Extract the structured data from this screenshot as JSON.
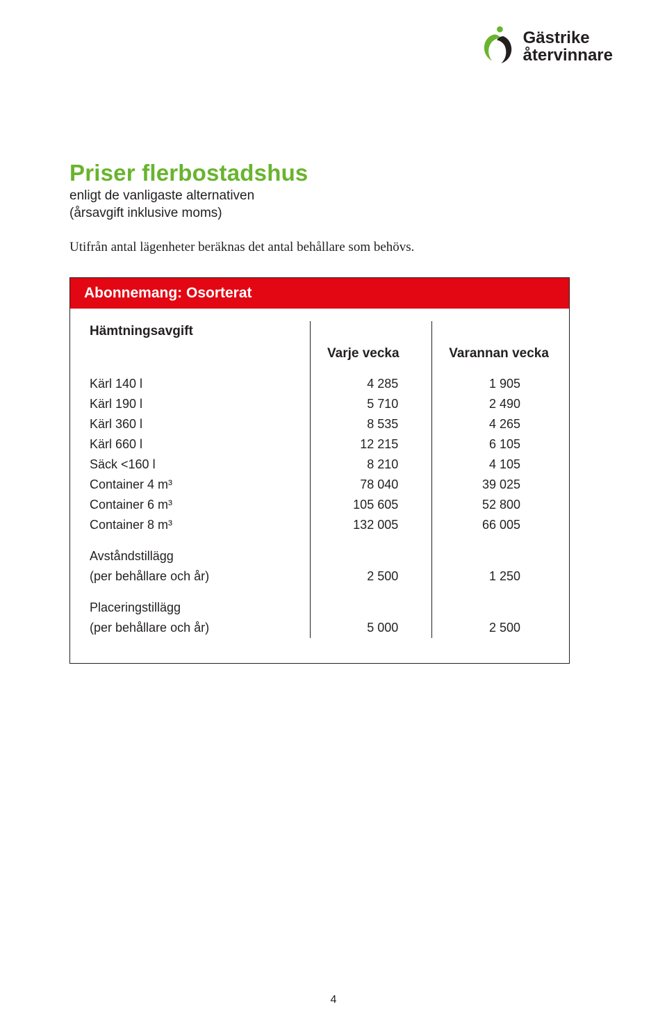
{
  "brand": {
    "line1": "Gästrike",
    "line2": "återvinnare"
  },
  "colors": {
    "accent": "#69b42e",
    "banner": "#e30613"
  },
  "heading": {
    "title": "Priser flerbostadshus",
    "subtitle": "enligt de vanligaste alternativen<br>(årsavgift inklusive moms)",
    "intro": "Utifrån antal lägenheter beräknas det antal behållare som behövs."
  },
  "table": {
    "banner": "Abonnemang: Osorterat",
    "heading": "Hämtningsavgift",
    "col2": "Varje vecka",
    "col3": "Varannan vecka",
    "rows": [
      {
        "label": "Kärl 140 l",
        "c2": "4 285",
        "c3": "1 905"
      },
      {
        "label": "Kärl 190 l",
        "c2": "5 710",
        "c3": "2 490"
      },
      {
        "label": "Kärl 360 l",
        "c2": "8 535",
        "c3": "4 265"
      },
      {
        "label": "Kärl 660 l",
        "c2": "12 215",
        "c3": "6 105"
      },
      {
        "label": "Säck <160 l",
        "c2": "8 210",
        "c3": "4 105"
      },
      {
        "label": "Container 4 m³",
        "c2": "78 040",
        "c3": "39 025"
      },
      {
        "label": "Container 6 m³",
        "c2": "105 605",
        "c3": "52 800"
      },
      {
        "label": "Container 8 m³",
        "c2": "132 005",
        "c3": "66 005"
      }
    ],
    "extras": [
      {
        "label": "Avståndstillägg",
        "sub": "(per behållare och år)",
        "c2": "2 500",
        "c3": "1 250"
      },
      {
        "label": "Placeringstillägg",
        "sub": "(per behållare och år)",
        "c2": "5 000",
        "c3": "2 500"
      }
    ]
  },
  "page_number": "4"
}
